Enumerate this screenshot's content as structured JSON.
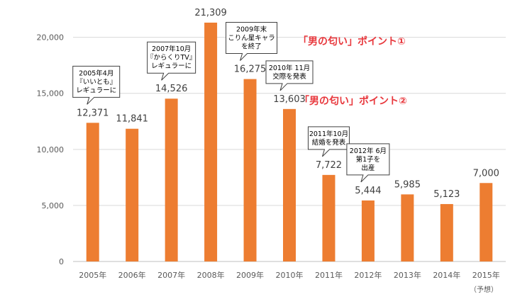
{
  "chart_data": {
    "type": "bar",
    "title": "",
    "xlabel": "",
    "ylabel": "",
    "categories": [
      "2005年",
      "2006年",
      "2007年",
      "2008年",
      "2009年",
      "2010年",
      "2011年",
      "2012年",
      "2013年",
      "2014年",
      "2015年"
    ],
    "values": [
      12371,
      11841,
      14526,
      21309,
      16275,
      13603,
      7722,
      5444,
      5985,
      5123,
      7000
    ],
    "data_labels": [
      "12,371",
      "11,841",
      "14,526",
      "21,309",
      "16,275",
      "13,603",
      "7,722",
      "5,444",
      "5,985",
      "5,123",
      "7,000"
    ],
    "ylim": [
      0,
      22000
    ],
    "y_ticks": [
      0,
      5000,
      10000,
      15000,
      20000
    ],
    "y_tick_labels": [
      "0",
      "5,000",
      "10,000",
      "15,000",
      "20,000"
    ],
    "grid": true,
    "bar_color": "#ED7D31",
    "footnote": "（予想）",
    "footnote_category_index": 10,
    "notes": [
      {
        "text": "「男の匂い」ポイント①",
        "color": "#E8383D"
      },
      {
        "text": "「男の匂い」ポイント②",
        "color": "#E8383D"
      }
    ],
    "callouts": [
      {
        "bar_index": 0,
        "lines": [
          "2005年4月",
          "『いいとも』",
          "レギュラーに"
        ]
      },
      {
        "bar_index": 2,
        "lines": [
          "2007年10月",
          "『からくりTV』",
          "レギュラーに"
        ]
      },
      {
        "bar_index": 4,
        "lines": [
          "2009年末",
          "こりん星キャラ",
          "を終了"
        ]
      },
      {
        "bar_index": 5,
        "lines": [
          "2010年 11月",
          "交際を発表"
        ]
      },
      {
        "bar_index": 6,
        "lines": [
          "2011年10月",
          "結婚を発表"
        ]
      },
      {
        "bar_index": 7,
        "lines": [
          "2012年 6月",
          "第1子を",
          "出産"
        ]
      }
    ]
  }
}
